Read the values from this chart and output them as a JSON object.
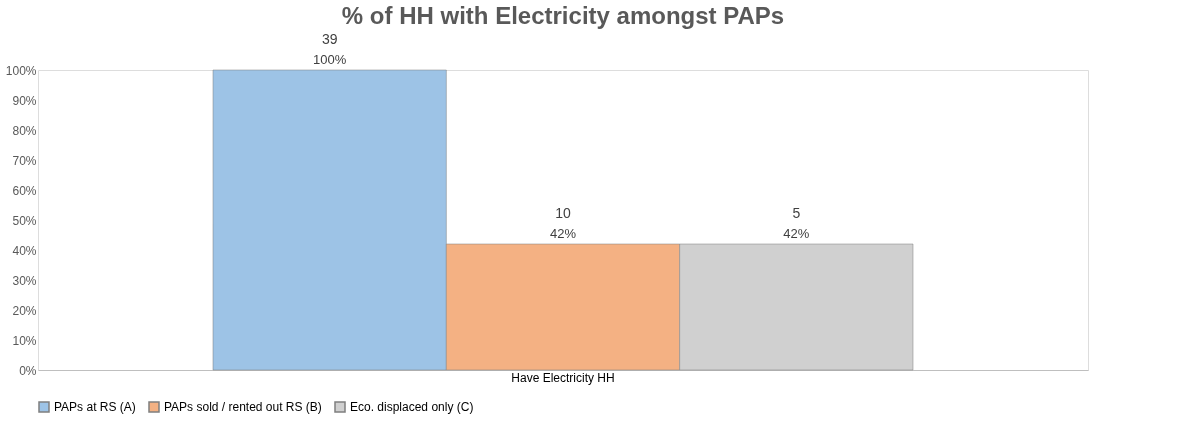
{
  "chart_data": {
    "type": "bar",
    "title": "% of HH with Electricity amongst PAPs",
    "categories": [
      "Have Electricity HH"
    ],
    "series": [
      {
        "name": "PAPs at RS (A)",
        "color": "#9dc3e6",
        "values": [
          100
        ],
        "value_labels": [
          "100%"
        ]
      },
      {
        "name": "PAPs sold / rented out RS (B)",
        "color": "#f4b183",
        "values": [
          42
        ],
        "value_labels": [
          "42%"
        ]
      },
      {
        "name": "Eco. displaced only (C)",
        "color": "#d0d0d0",
        "values": [
          42
        ],
        "value_labels": [
          "42%"
        ]
      }
    ],
    "annotations": [
      "39",
      "10",
      "5"
    ],
    "ylim": [
      0,
      100
    ],
    "yticks": [
      {
        "value": 0,
        "label": "0%"
      },
      {
        "value": 10,
        "label": "10%"
      },
      {
        "value": 20,
        "label": "20%"
      },
      {
        "value": 30,
        "label": "30%"
      },
      {
        "value": 40,
        "label": "40%"
      },
      {
        "value": 50,
        "label": "50%"
      },
      {
        "value": 60,
        "label": "60%"
      },
      {
        "value": 70,
        "label": "70%"
      },
      {
        "value": 80,
        "label": "80%"
      },
      {
        "value": 90,
        "label": "90%"
      },
      {
        "value": 100,
        "label": "100%"
      }
    ],
    "grid": false,
    "legend": "bottom"
  }
}
